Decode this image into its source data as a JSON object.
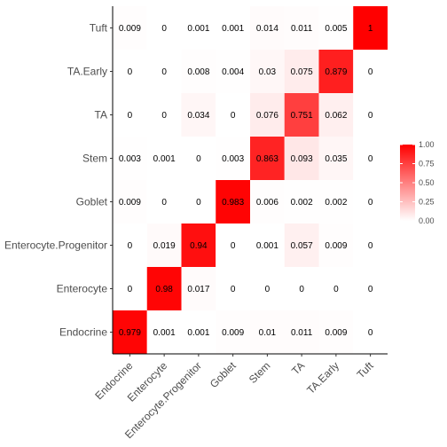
{
  "chart_data": {
    "type": "heatmap",
    "x_categories": [
      "Endocrine",
      "Enterocyte",
      "Enterocyte.Progenitor",
      "Goblet",
      "Stem",
      "TA",
      "TA.Early",
      "Tuft"
    ],
    "y_categories": [
      "Endocrine",
      "Enterocyte",
      "Enterocyte.Progenitor",
      "Goblet",
      "Stem",
      "TA",
      "TA.Early",
      "Tuft"
    ],
    "values": [
      [
        0.979,
        0.001,
        0.001,
        0.009,
        0.01,
        0.011,
        0.009,
        0
      ],
      [
        0,
        0.98,
        0.017,
        0,
        0,
        0,
        0,
        0
      ],
      [
        0,
        0.019,
        0.94,
        0,
        0.001,
        0.057,
        0.009,
        0
      ],
      [
        0.009,
        0,
        0,
        0.983,
        0.006,
        0.002,
        0.002,
        0
      ],
      [
        0.003,
        0.001,
        0,
        0.003,
        0.863,
        0.093,
        0.035,
        0
      ],
      [
        0,
        0,
        0.034,
        0,
        0.076,
        0.751,
        0.062,
        0
      ],
      [
        0,
        0,
        0.008,
        0.004,
        0.03,
        0.075,
        0.879,
        0
      ],
      [
        0.009,
        0,
        0.001,
        0.001,
        0.014,
        0.011,
        0.005,
        1
      ]
    ],
    "value_labels": [
      [
        "0.979",
        "0.001",
        "0.001",
        "0.009",
        "0.01",
        "0.011",
        "0.009",
        "0"
      ],
      [
        "0",
        "0.98",
        "0.017",
        "0",
        "0",
        "0",
        "0",
        "0"
      ],
      [
        "0",
        "0.019",
        "0.94",
        "0",
        "0.001",
        "0.057",
        "0.009",
        "0"
      ],
      [
        "0.009",
        "0",
        "0",
        "0.983",
        "0.006",
        "0.002",
        "0.002",
        "0"
      ],
      [
        "0.003",
        "0.001",
        "0",
        "0.003",
        "0.863",
        "0.093",
        "0.035",
        "0"
      ],
      [
        "0",
        "0",
        "0.034",
        "0",
        "0.076",
        "0.751",
        "0.062",
        "0"
      ],
      [
        "0",
        "0",
        "0.008",
        "0.004",
        "0.03",
        "0.075",
        "0.879",
        "0"
      ],
      [
        "0.009",
        "0",
        "0.001",
        "0.001",
        "0.014",
        "0.011",
        "0.005",
        "1"
      ]
    ],
    "color_low": "#ffffff",
    "color_high": "#ff0000",
    "legend": {
      "placement": "right",
      "range": [
        0,
        1
      ],
      "ticks": [
        "0.00",
        "0.25",
        "0.50",
        "0.75",
        "1.00"
      ]
    },
    "grid": false
  }
}
